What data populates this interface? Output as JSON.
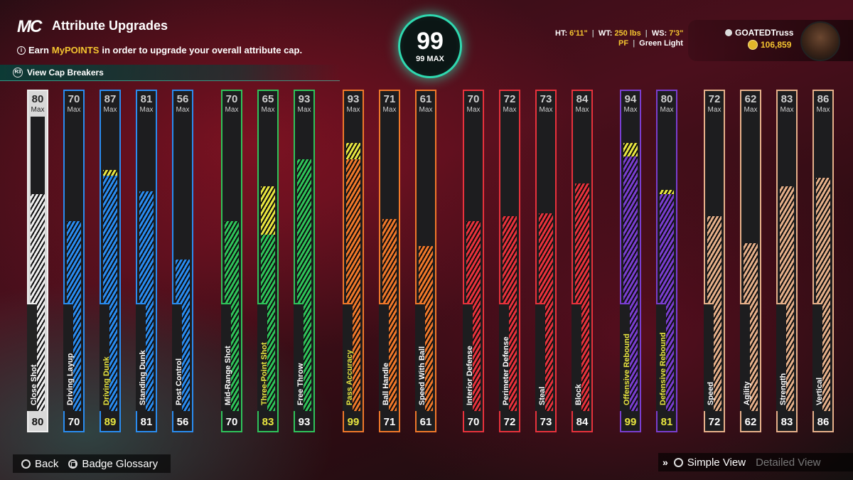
{
  "header": {
    "logo": "MC",
    "title": "Attribute Upgrades",
    "subtitle_pre": "Earn ",
    "subtitle_hl": "MyPOINTS",
    "subtitle_post": " in order to upgrade your overall attribute cap.",
    "cap_breakers_label": "View Cap Breakers"
  },
  "overall": {
    "value": "99",
    "max_label": "99 MAX"
  },
  "bio": {
    "ht_label": "HT:",
    "ht": "6'11\"",
    "wt_label": "WT:",
    "wt": "250 lbs",
    "ws_label": "WS:",
    "ws": "7'3\"",
    "position": "PF",
    "archetype": "Green Light"
  },
  "player": {
    "gamertag": "GOATEDTruss",
    "vc": "106,859"
  },
  "colors": {
    "white": "#f0f0f0",
    "blue": "#2a8cf0",
    "green": "#2fc45a",
    "orange": "#f0782a",
    "red": "#e8323c",
    "purple": "#7a3ed0",
    "tan": "#e6b08a",
    "yellow": "#e8e640"
  },
  "max_label": "Max",
  "attributes": [
    {
      "name": "Close Shot",
      "cap": "80",
      "current": "80",
      "value": 80,
      "max": 80,
      "group": "white",
      "hl": false
    },
    {
      "name": "Driving Layup",
      "cap": "70",
      "current": "70",
      "value": 70,
      "max": 70,
      "group": "blue",
      "hl": false
    },
    {
      "name": "Driving Dunk",
      "cap": "87",
      "current": "89",
      "value": 87,
      "max": 89,
      "group": "blue",
      "hl": true
    },
    {
      "name": "Standing Dunk",
      "cap": "81",
      "current": "81",
      "value": 81,
      "max": 81,
      "group": "blue",
      "hl": false
    },
    {
      "name": "Post Control",
      "cap": "56",
      "current": "56",
      "value": 56,
      "max": 56,
      "group": "blue",
      "hl": false
    },
    {
      "name": "Mid-Range Shot",
      "cap": "70",
      "current": "70",
      "value": 70,
      "max": 70,
      "group": "green",
      "hl": false
    },
    {
      "name": "Three-Point Shot",
      "cap": "65",
      "current": "83",
      "value": 65,
      "max": 83,
      "group": "green",
      "hl": true
    },
    {
      "name": "Free Throw",
      "cap": "93",
      "current": "93",
      "value": 93,
      "max": 93,
      "group": "green",
      "hl": false
    },
    {
      "name": "Pass Accuracy",
      "cap": "93",
      "current": "99",
      "value": 93,
      "max": 99,
      "group": "orange",
      "hl": true
    },
    {
      "name": "Ball Handle",
      "cap": "71",
      "current": "71",
      "value": 71,
      "max": 71,
      "group": "orange",
      "hl": false
    },
    {
      "name": "Speed With Ball",
      "cap": "61",
      "current": "61",
      "value": 61,
      "max": 61,
      "group": "orange",
      "hl": false
    },
    {
      "name": "Interior Defense",
      "cap": "70",
      "current": "70",
      "value": 70,
      "max": 70,
      "group": "red",
      "hl": false
    },
    {
      "name": "Perimeter Defense",
      "cap": "72",
      "current": "72",
      "value": 72,
      "max": 72,
      "group": "red",
      "hl": false
    },
    {
      "name": "Steal",
      "cap": "73",
      "current": "73",
      "value": 73,
      "max": 73,
      "group": "red",
      "hl": false
    },
    {
      "name": "Block",
      "cap": "84",
      "current": "84",
      "value": 84,
      "max": 84,
      "group": "red",
      "hl": false
    },
    {
      "name": "Offensive Rebound",
      "cap": "94",
      "current": "99",
      "value": 94,
      "max": 99,
      "group": "purple",
      "hl": true
    },
    {
      "name": "Defensive Rebound",
      "cap": "80",
      "current": "81",
      "value": 80,
      "max": 81,
      "group": "purple",
      "hl": true
    },
    {
      "name": "Speed",
      "cap": "72",
      "current": "72",
      "value": 72,
      "max": 72,
      "group": "tan",
      "hl": false
    },
    {
      "name": "Agility",
      "cap": "62",
      "current": "62",
      "value": 62,
      "max": 62,
      "group": "tan",
      "hl": false
    },
    {
      "name": "Strength",
      "cap": "83",
      "current": "83",
      "value": 83,
      "max": 83,
      "group": "tan",
      "hl": false
    },
    {
      "name": "Vertical",
      "cap": "86",
      "current": "86",
      "value": 86,
      "max": 86,
      "group": "tan",
      "hl": false
    }
  ],
  "footer": {
    "back_label": "Back",
    "glossary_label": "Badge Glossary",
    "simple_view_label": "Simple View",
    "detailed_view_label": "Detailed View"
  }
}
